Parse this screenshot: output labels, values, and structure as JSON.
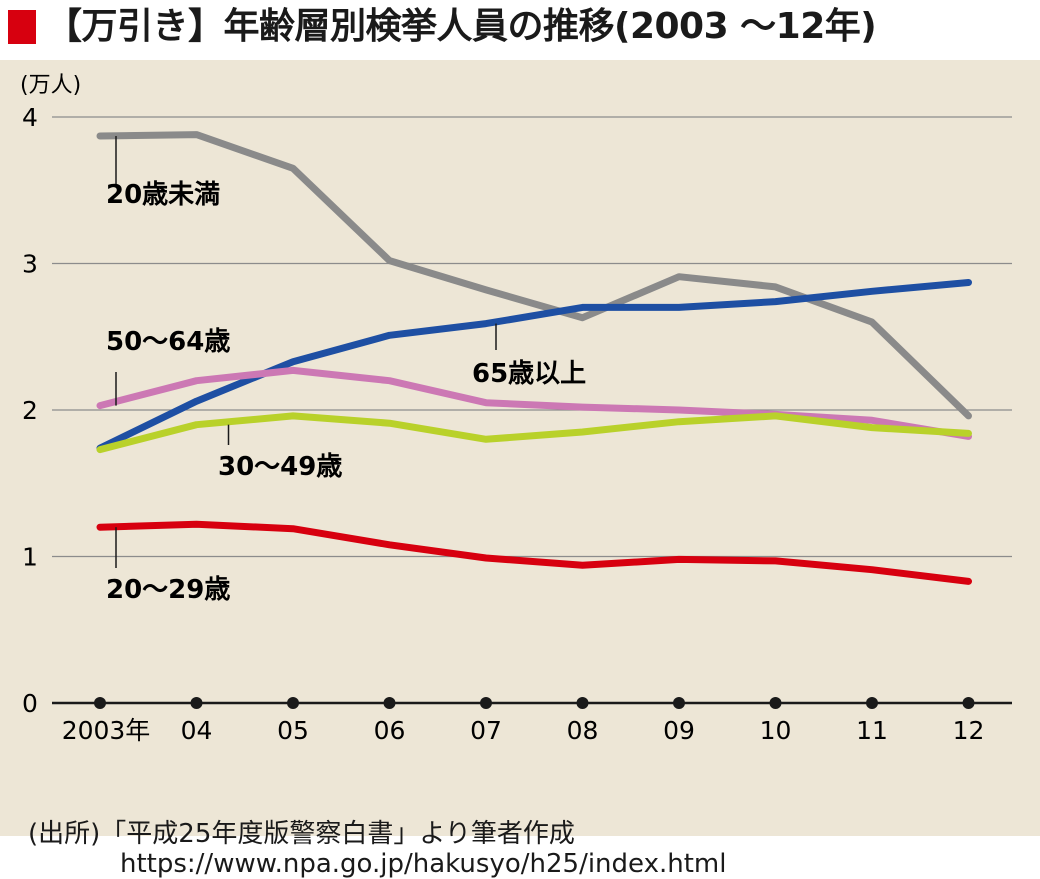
{
  "header": {
    "title": "【万引き】年齢層別検挙人員の推移(2003 ～12年)",
    "accent_color": "#d7000f"
  },
  "footer": {
    "source": "(出所)「平成25年度版警察白書」より筆者作成",
    "url": "https://www.npa.go.jp/hakusyo/h25/index.html"
  },
  "chart_data": {
    "type": "line",
    "title": "【万引き】年齢層別検挙人員の推移(2003 ～12年)",
    "ylabel": "(万人)",
    "xlabel": "",
    "ylim": [
      0,
      4
    ],
    "yticks": [
      0,
      1,
      2,
      3,
      4
    ],
    "grid": true,
    "categories": [
      "2003年",
      "04",
      "05",
      "06",
      "07",
      "08",
      "09",
      "10",
      "11",
      "12"
    ],
    "series": [
      {
        "name": "20歳未満",
        "color": "#8a8a8a",
        "values": [
          3.87,
          3.88,
          3.65,
          3.02,
          2.82,
          2.63,
          2.91,
          2.84,
          2.6,
          1.96
        ]
      },
      {
        "name": "65歳以上",
        "color": "#1e4fa3",
        "values": [
          1.74,
          2.06,
          2.33,
          2.51,
          2.59,
          2.7,
          2.7,
          2.74,
          2.81,
          2.87
        ]
      },
      {
        "name": "50～64歳",
        "color": "#cc78b4",
        "values": [
          2.03,
          2.2,
          2.27,
          2.2,
          2.05,
          2.02,
          2.0,
          1.97,
          1.93,
          1.82
        ]
      },
      {
        "name": "30～49歳",
        "color": "#b9d12a",
        "values": [
          1.73,
          1.9,
          1.96,
          1.91,
          1.8,
          1.85,
          1.92,
          1.96,
          1.88,
          1.84
        ]
      },
      {
        "name": "20～29歳",
        "color": "#d7000f",
        "values": [
          1.2,
          1.22,
          1.19,
          1.08,
          0.99,
          0.94,
          0.98,
          0.97,
          0.91,
          0.83
        ]
      }
    ]
  }
}
